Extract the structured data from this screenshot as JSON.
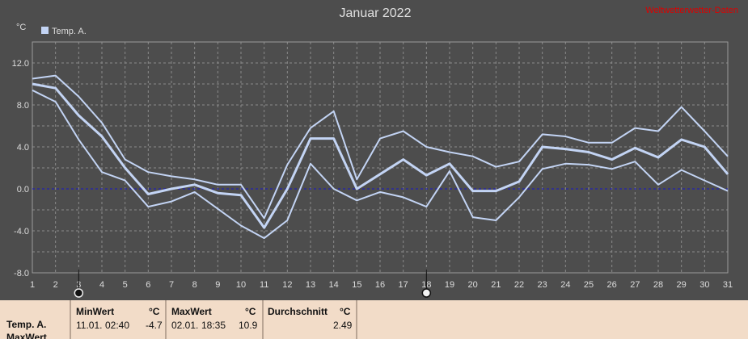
{
  "chart_data": {
    "type": "line",
    "title": "Januar 2022",
    "watermark": "Weltwetterwetter-Daten",
    "ylabel": "°C",
    "ylim": [
      -8,
      14
    ],
    "yticks": [
      "12.0",
      "8.0",
      "4.0",
      "0.0",
      "-4.0",
      "-8.0"
    ],
    "ytick_values": [
      12,
      8,
      4,
      0,
      -4,
      -8
    ],
    "x": [
      1,
      2,
      3,
      4,
      5,
      6,
      7,
      8,
      9,
      10,
      11,
      12,
      13,
      14,
      15,
      16,
      17,
      18,
      19,
      20,
      21,
      22,
      23,
      24,
      25,
      26,
      27,
      28,
      29,
      30,
      31
    ],
    "grid": true,
    "legend": "top-left",
    "series": [
      {
        "name": "Temp. A.",
        "role": "max",
        "values": [
          10.5,
          10.8,
          8.8,
          6.3,
          2.8,
          1.6,
          1.2,
          0.9,
          0.4,
          0.4,
          -2.8,
          2.3,
          5.8,
          7.4,
          0.9,
          4.8,
          5.5,
          4.0,
          3.5,
          3.1,
          2.1,
          2.6,
          5.2,
          5.0,
          4.4,
          4.4,
          5.8,
          5.5,
          7.8,
          5.5,
          3.1
        ]
      },
      {
        "name": "Temp. A.",
        "role": "mean",
        "values": [
          10.0,
          9.6,
          7.0,
          5.0,
          2.0,
          -0.5,
          0.0,
          0.4,
          -0.4,
          -0.6,
          -3.7,
          0.0,
          4.8,
          4.8,
          0.0,
          1.4,
          2.8,
          1.3,
          2.4,
          -0.2,
          -0.2,
          0.7,
          4.0,
          3.8,
          3.5,
          2.8,
          3.9,
          3.0,
          4.7,
          4.0,
          1.4
        ]
      },
      {
        "name": "Temp. A.",
        "role": "min",
        "values": [
          9.4,
          8.3,
          4.7,
          1.6,
          0.8,
          -1.7,
          -1.2,
          -0.3,
          -1.9,
          -3.5,
          -4.7,
          -3.0,
          2.4,
          0.0,
          -1.1,
          -0.3,
          -0.8,
          -1.7,
          1.7,
          -2.7,
          -3.0,
          -0.8,
          1.9,
          2.4,
          2.3,
          1.9,
          2.6,
          0.4,
          1.8,
          0.8,
          -0.2
        ]
      }
    ],
    "markers": {
      "moon_new": 3,
      "moon_full": 18
    },
    "colors": {
      "series": "#c3d4f4",
      "zero_line": "#1818c8",
      "grid": "#8a8a8a",
      "axis_text": "#dcdcdc",
      "background": "#4d4d4d",
      "watermark": "#dd0000"
    }
  },
  "stats": {
    "row_label": "Temp. A.",
    "row_label2": "MaxWert",
    "min_header": "MinWert",
    "min_unit": "°C",
    "min_date": "11.01.",
    "min_time": "02:40",
    "min_value": "-4.7",
    "max_header": "MaxWert",
    "max_unit": "°C",
    "max_date": "02.01.",
    "max_time": "18:35",
    "max_value": "10.9",
    "avg_header": "Durchschnitt",
    "avg_unit": "°C",
    "avg_value": "2.49"
  }
}
